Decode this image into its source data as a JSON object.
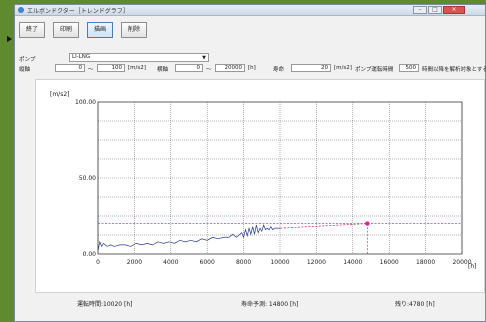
{
  "window": {
    "title": "エルボンドクター［トレンドグラフ］",
    "minimize": "–",
    "maximize": "□",
    "close": "×"
  },
  "toolbar": {
    "end": "終了",
    "print": "印刷",
    "draw": "描画",
    "delete": "削除"
  },
  "form": {
    "pump_label": "ポンプ",
    "pump_value": "LI-LNG",
    "vertical_label": "縦軸",
    "vertical_from": "0",
    "tilde": "～",
    "vertical_to": "100",
    "vertical_unit": "[m/s2]",
    "horizontal_label": "横軸",
    "horizontal_from": "0",
    "horizontal_to": "20000",
    "horizontal_unit": "[h]",
    "life_label": "寿命",
    "life_value": "20",
    "life_unit": "[m/s2]",
    "pump_runtime_label": "ポンプ運転時間",
    "pump_runtime_value": "500",
    "pump_runtime_note": "時間以降を解析対象とする"
  },
  "status": {
    "runtime": "運転時間:10020 [h]",
    "life_forecast": "寿命予測: 14800 [h]",
    "remaining": "残り:4780 [h]"
  },
  "chart_data": {
    "type": "line",
    "ylabel": "[m/s2]",
    "xlabel": "[h]",
    "xlim": [
      0,
      20000
    ],
    "ylim": [
      0,
      100
    ],
    "x_ticks": [
      0,
      2000,
      4000,
      6000,
      8000,
      10000,
      12000,
      14000,
      16000,
      18000,
      20000
    ],
    "y_ticks": [
      "0.00",
      "50.00",
      "100.00"
    ],
    "grid": true,
    "measured": {
      "x": [
        0,
        100,
        200,
        300,
        500,
        700,
        900,
        1200,
        1500,
        1800,
        2100,
        2400,
        2700,
        3000,
        3300,
        3600,
        3900,
        4200,
        4500,
        4800,
        5100,
        5400,
        5700,
        6000,
        6300,
        6600,
        6900,
        7200,
        7400,
        7600,
        7800,
        7900,
        8000,
        8100,
        8200,
        8300,
        8400,
        8500,
        8600,
        8700,
        8800,
        8900,
        9000,
        9100,
        9200,
        9300,
        9400,
        9500,
        9600,
        9700,
        9800,
        9900,
        10020
      ],
      "y": [
        2,
        8,
        5,
        7,
        5,
        6,
        5,
        6,
        6,
        5,
        7,
        6,
        7,
        6,
        8,
        7,
        8,
        7,
        9,
        8,
        9,
        8,
        10,
        9,
        11,
        10,
        11,
        11,
        13,
        11,
        13,
        14,
        11,
        16,
        12,
        17,
        13,
        18,
        13,
        19,
        14,
        17,
        15,
        19,
        16,
        17,
        16,
        18,
        16,
        17,
        17,
        17,
        17
      ]
    },
    "trend": {
      "x": [
        10020,
        14800
      ],
      "y": [
        17,
        20
      ]
    },
    "life_threshold": 20,
    "life_forecast_x": 14800
  }
}
